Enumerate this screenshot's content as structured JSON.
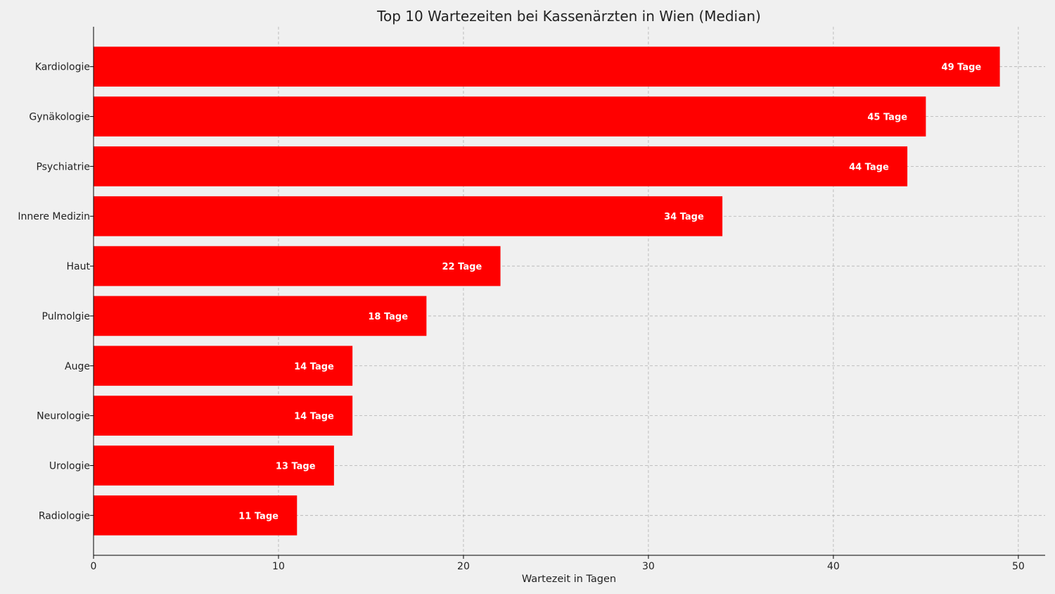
{
  "chart_data": {
    "type": "bar",
    "orientation": "horizontal",
    "title": "Top 10 Wartezeiten bei Kassenärzten in Wien (Median)",
    "xlabel": "Wartezeit in Tagen",
    "ylabel": "",
    "categories": [
      "Kardiologie",
      "Gynäkologie",
      "Psychiatrie",
      "Innere Medizin",
      "Haut",
      "Pulmolgie",
      "Auge",
      "Neurologie",
      "Urologie",
      "Radiologie"
    ],
    "values": [
      49,
      45,
      44,
      34,
      22,
      18,
      14,
      14,
      13,
      11
    ],
    "data_labels": [
      "49 Tage",
      "45 Tage",
      "44 Tage",
      "34 Tage",
      "22 Tage",
      "18 Tage",
      "14 Tage",
      "14 Tage",
      "13 Tage",
      "11 Tage"
    ],
    "xlim": [
      0,
      51.45
    ],
    "xticks": [
      0,
      10,
      20,
      30,
      40,
      50
    ],
    "grid": true,
    "bar_color": "#ff0000",
    "background_color": "#f0f0f0"
  }
}
